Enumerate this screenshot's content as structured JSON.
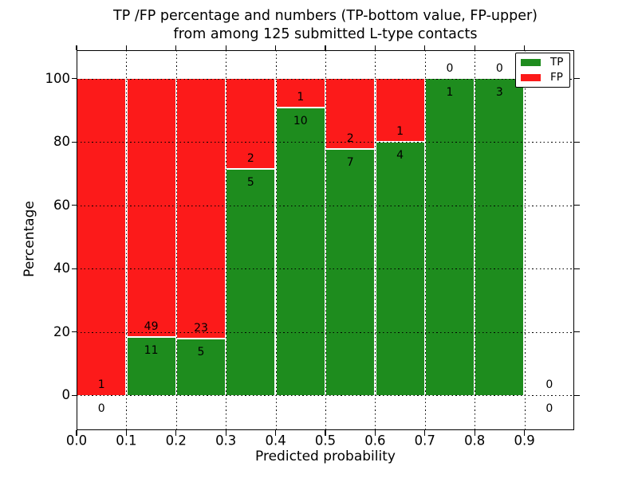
{
  "chart_data": {
    "type": "bar",
    "stacked": true,
    "title_line1": "TP /FP percentage and numbers (TP-bottom value, FP-upper)",
    "title_line2": "from among 125 submitted L-type contacts",
    "xlabel": "Predicted probability",
    "ylabel": "Percentage",
    "xlim": [
      0.0,
      1.0
    ],
    "ylim": [
      -11,
      109
    ],
    "x_tick_labels": [
      "0.0",
      "0.1",
      "0.2",
      "0.3",
      "0.4",
      "0.5",
      "0.6",
      "0.7",
      "0.8",
      "0.9"
    ],
    "y_tick_values": [
      0,
      20,
      40,
      60,
      80,
      100
    ],
    "y_tick_labels": [
      "0",
      "20",
      "40",
      "60",
      "80",
      "100"
    ],
    "grid": true,
    "grid_style": "dotted",
    "colors": {
      "tp": "#1e8c1e",
      "fp": "#fc1a1a",
      "edge": "#ffffff",
      "axis": "#000000"
    },
    "legend": {
      "position": "upper right",
      "entries": [
        {
          "label": "TP",
          "color": "#1e8c1e"
        },
        {
          "label": "FP",
          "color": "#fc1a1a"
        }
      ]
    },
    "total_submitted": 125,
    "bins": [
      {
        "x_start": 0.0,
        "x_end": 0.1,
        "tp": 0,
        "fp": 1,
        "tp_pct": 0
      },
      {
        "x_start": 0.1,
        "x_end": 0.2,
        "tp": 11,
        "fp": 49,
        "tp_pct": 18.33
      },
      {
        "x_start": 0.2,
        "x_end": 0.3,
        "tp": 5,
        "fp": 23,
        "tp_pct": 17.86
      },
      {
        "x_start": 0.3,
        "x_end": 0.4,
        "tp": 5,
        "fp": 2,
        "tp_pct": 71.43
      },
      {
        "x_start": 0.4,
        "x_end": 0.5,
        "tp": 10,
        "fp": 1,
        "tp_pct": 90.91
      },
      {
        "x_start": 0.5,
        "x_end": 0.6,
        "tp": 7,
        "fp": 2,
        "tp_pct": 77.78
      },
      {
        "x_start": 0.6,
        "x_end": 0.7,
        "tp": 4,
        "fp": 1,
        "tp_pct": 80.0
      },
      {
        "x_start": 0.7,
        "x_end": 0.8,
        "tp": 1,
        "fp": 0,
        "tp_pct": 100.0
      },
      {
        "x_start": 0.8,
        "x_end": 0.9,
        "tp": 3,
        "fp": 0,
        "tp_pct": 100.0
      },
      {
        "x_start": 0.9,
        "x_end": 1.0,
        "tp": 0,
        "fp": 0,
        "tp_pct": 0
      }
    ]
  }
}
